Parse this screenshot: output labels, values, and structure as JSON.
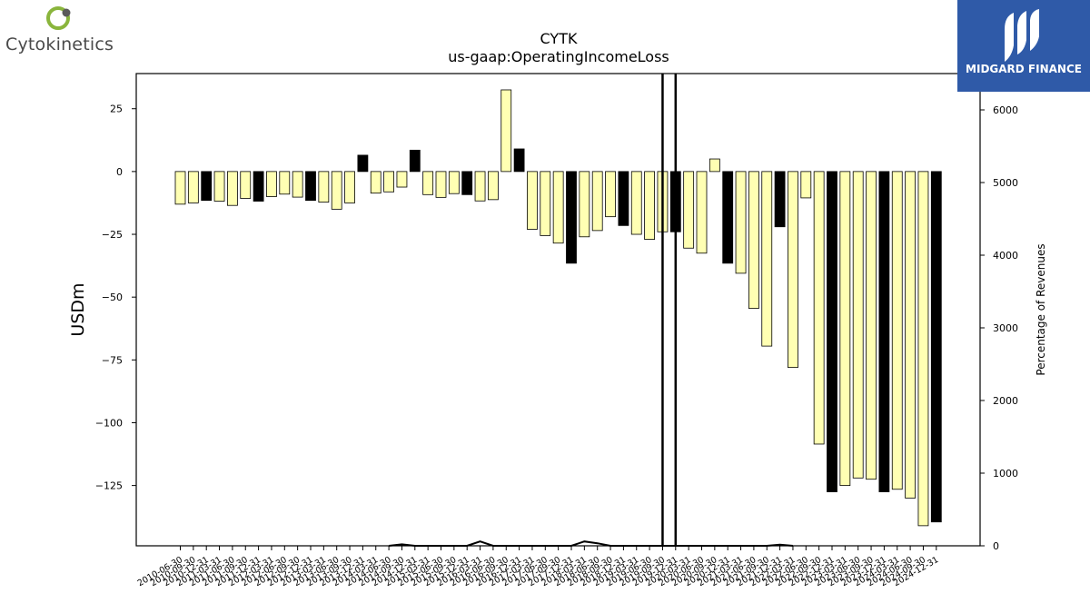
{
  "brand_left": {
    "name": "Cytokinetics",
    "icon": "cytokinetics-logo-icon",
    "colors": {
      "ring": "#8ab53c",
      "dot": "#5a5a5a"
    }
  },
  "brand_right": {
    "name": "MIDGARD FINANCE",
    "icon": "midgard-logo-icon",
    "colors": {
      "background": "#2f5aa8"
    }
  },
  "chart_data": {
    "type": "bar",
    "title": "CYTK",
    "subtitle": "us-gaap:OperatingIncomeLoss",
    "ylabel": "USDm",
    "y2label": "Percentage of Revenues",
    "ylim": [
      -149,
      39
    ],
    "y2lim": [
      0,
      6500
    ],
    "yticks": [
      25,
      0,
      -25,
      -50,
      -75,
      -100,
      -125
    ],
    "y2ticks": [
      0,
      1000,
      2000,
      3000,
      4000,
      5000,
      6000
    ],
    "grid": false,
    "colors": {
      "quarter": "#ffffb3",
      "annual": "#000000"
    },
    "categories": [
      "2010-06-30",
      "2010-09-30",
      "2010-12-31",
      "2011-03-31",
      "2011-06-30",
      "2011-09-30",
      "2011-12-31",
      "2012-03-31",
      "2012-06-30",
      "2012-09-30",
      "2012-12-31",
      "2013-03-31",
      "2013-06-30",
      "2013-09-30",
      "2013-12-31",
      "2014-03-31",
      "2014-06-30",
      "2014-09-30",
      "2014-12-31",
      "2015-03-31",
      "2015-06-30",
      "2015-09-30",
      "2015-12-31",
      "2016-03-31",
      "2016-06-30",
      "2016-09-30",
      "2016-12-31",
      "2017-03-31",
      "2017-06-30",
      "2017-09-30",
      "2017-12-31",
      "2018-03-31",
      "2018-06-30",
      "2018-09-30",
      "2018-12-31",
      "2019-03-31",
      "2019-06-30",
      "2019-09-30",
      "2019-12-31",
      "2020-03-31",
      "2020-06-30",
      "2020-09-30",
      "2020-12-31",
      "2021-03-31",
      "2021-06-30",
      "2021-09-30",
      "2021-12-31",
      "2022-03-31",
      "2022-06-30",
      "2022-09-30",
      "2022-12-31",
      "2023-03-31",
      "2023-06-30",
      "2023-09-30",
      "2023-12-31",
      "2024-03-31",
      "2024-06-30",
      "2024-09-30",
      "2024-12-31"
    ],
    "values": [
      -13,
      -12.5,
      -11.5,
      -11.8,
      -13.5,
      -10.7,
      -11.8,
      -10,
      -9,
      -10.2,
      -11.5,
      -12.2,
      -15,
      -12.5,
      6.5,
      -8.6,
      -8.1,
      -6.2,
      8.5,
      -9.2,
      -10.3,
      -8.8,
      -9.2,
      -11.7,
      -11.2,
      32.5,
      9,
      -23,
      -25.5,
      -28.5,
      -36.5,
      -26,
      -23.5,
      -18,
      -21.5,
      -25,
      -27,
      -24,
      -24,
      -30.5,
      -32.5,
      5,
      -36.5,
      -40.5,
      -54.5,
      -69.5,
      -22,
      -78,
      -10.5,
      -108.5,
      -127.5,
      -125,
      -122,
      -122.5,
      -127.5,
      -126.5,
      -130,
      -141,
      -139.5
    ],
    "annual": [
      false,
      false,
      true,
      false,
      false,
      false,
      true,
      false,
      false,
      false,
      true,
      false,
      false,
      false,
      true,
      false,
      false,
      false,
      true,
      false,
      false,
      false,
      true,
      false,
      false,
      false,
      true,
      false,
      false,
      false,
      true,
      false,
      false,
      false,
      true,
      false,
      false,
      false,
      true,
      false,
      false,
      false,
      true,
      false,
      false,
      false,
      true,
      false,
      false,
      false,
      true,
      false,
      false,
      false,
      true,
      false,
      false,
      false,
      true
    ],
    "pct_revenue_points": [
      {
        "x": "2014-06-30",
        "value": 0
      },
      {
        "x": "2014-09-30",
        "value": 20
      },
      {
        "x": "2014-12-31",
        "value": 0
      },
      {
        "x": "2015-12-31",
        "value": 0
      },
      {
        "x": "2016-03-31",
        "value": 60
      },
      {
        "x": "2016-06-30",
        "value": 0
      },
      {
        "x": "2017-12-31",
        "value": 0
      },
      {
        "x": "2018-03-31",
        "value": 60
      },
      {
        "x": "2018-06-30",
        "value": 35
      },
      {
        "x": "2018-09-30",
        "value": 0
      },
      {
        "x": "2021-09-30",
        "value": 0
      },
      {
        "x": "2021-12-31",
        "value": 15
      },
      {
        "x": "2022-03-31",
        "value": 0
      }
    ],
    "vertical_lines": [
      "2019-09-30",
      "2019-12-31"
    ]
  }
}
